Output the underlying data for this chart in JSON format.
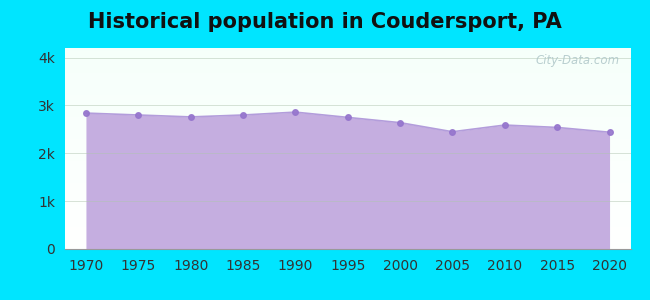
{
  "title": "Historical population in Coudersport, PA",
  "years": [
    1970,
    1975,
    1980,
    1985,
    1990,
    1995,
    2000,
    2005,
    2010,
    2015,
    2020
  ],
  "population": [
    2840,
    2800,
    2760,
    2800,
    2860,
    2750,
    2640,
    2450,
    2590,
    2540,
    2440
  ],
  "fill_color": "#c5aee0",
  "fill_alpha": 1.0,
  "marker_color": "#9575cd",
  "line_color": "#b39ddb",
  "background_outer": "#00e5ff",
  "ylim": [
    0,
    4200
  ],
  "xlim": [
    1968,
    2022
  ],
  "yticks": [
    0,
    1000,
    2000,
    3000,
    4000
  ],
  "ytick_labels": [
    "0",
    "1k",
    "2k",
    "3k",
    "4k"
  ],
  "xticks": [
    1970,
    1975,
    1980,
    1985,
    1990,
    1995,
    2000,
    2005,
    2010,
    2015,
    2020
  ],
  "watermark": "City-Data.com",
  "title_fontsize": 15,
  "tick_fontsize": 10,
  "grid_color": "#b0c4b0",
  "grid_alpha": 0.5
}
